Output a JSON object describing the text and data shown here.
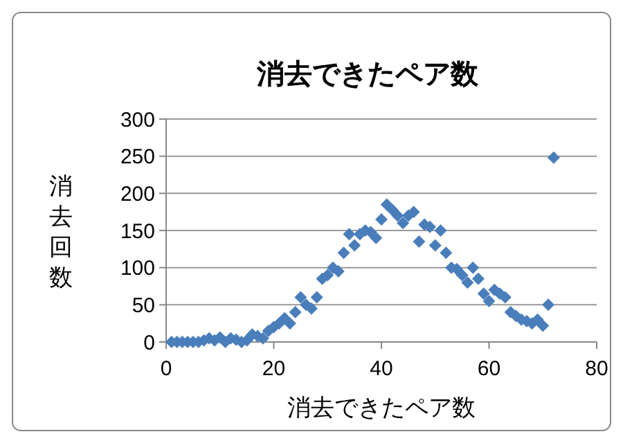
{
  "chart_data": {
    "type": "scatter",
    "title": "消去できたペア数",
    "xlabel": "消去できたペア数",
    "ylabel": "消去回数",
    "x": [
      1,
      2,
      3,
      4,
      5,
      6,
      7,
      8,
      9,
      10,
      11,
      12,
      13,
      14,
      15,
      16,
      17,
      18,
      19,
      20,
      21,
      22,
      23,
      24,
      25,
      26,
      27,
      28,
      29,
      30,
      31,
      32,
      33,
      34,
      35,
      36,
      37,
      38,
      39,
      40,
      41,
      42,
      43,
      44,
      45,
      46,
      47,
      48,
      49,
      50,
      51,
      52,
      53,
      54,
      55,
      56,
      57,
      58,
      59,
      60,
      61,
      62,
      63,
      64,
      65,
      66,
      67,
      68,
      69,
      70,
      71,
      72
    ],
    "series": [
      {
        "color": "#4a7ebb",
        "values": [
          0,
          0,
          0,
          0,
          0,
          0,
          2,
          5,
          2,
          6,
          0,
          5,
          3,
          0,
          2,
          10,
          8,
          5,
          15,
          20,
          25,
          32,
          25,
          40,
          60,
          50,
          45,
          60,
          85,
          90,
          100,
          95,
          120,
          145,
          130,
          145,
          150,
          148,
          140,
          165,
          185,
          178,
          170,
          160,
          170,
          175,
          135,
          158,
          155,
          130,
          150,
          120,
          100,
          98,
          90,
          80,
          100,
          85,
          65,
          55,
          70,
          65,
          60,
          40,
          35,
          30,
          28,
          25,
          30,
          22,
          50,
          248
        ]
      }
    ],
    "xlim": [
      0,
      80
    ],
    "xticks": [
      0,
      20,
      40,
      60,
      80
    ],
    "ylim": [
      0,
      300
    ],
    "yticks": [
      0,
      50,
      100,
      150,
      200,
      250,
      300
    ],
    "grid": "y",
    "marker": "diamond"
  }
}
